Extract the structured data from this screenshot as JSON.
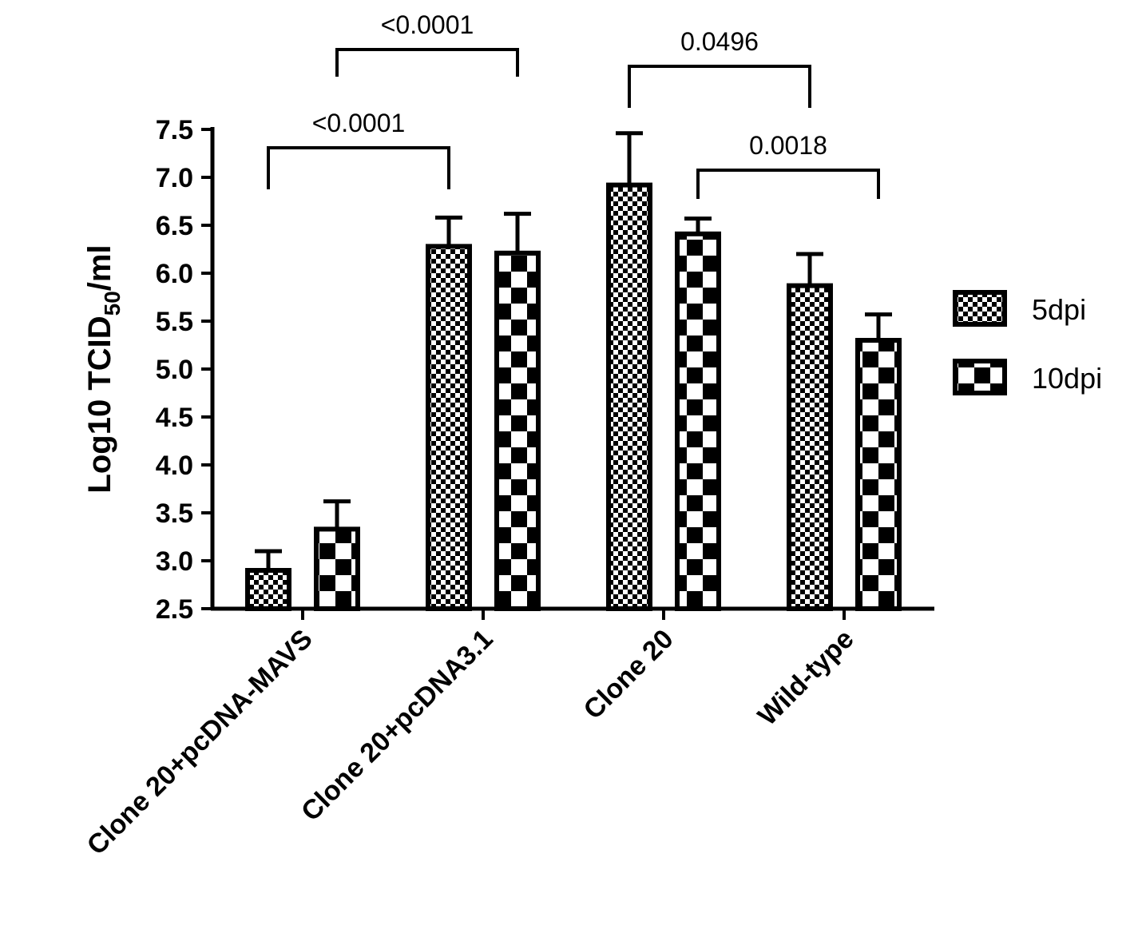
{
  "chart_data": {
    "type": "bar",
    "ylabel_parts": [
      "Log10 TCID",
      "50",
      "/ml"
    ],
    "ylim": [
      2.5,
      7.5
    ],
    "yticks": [
      "2.5",
      "3.0",
      "3.5",
      "4.0",
      "4.5",
      "5.0",
      "5.5",
      "6.0",
      "6.5",
      "7.0",
      "7.5"
    ],
    "categories": [
      "Clone 20+pcDNA-MAVS",
      "Clone 20+pcDNA3.1",
      "Clone 20",
      "Wild-type"
    ],
    "series": [
      {
        "name": "5dpi",
        "values": [
          2.9,
          6.28,
          6.92,
          5.87
        ],
        "errors": [
          0.2,
          0.3,
          0.54,
          0.33
        ]
      },
      {
        "name": "10dpi",
        "values": [
          3.33,
          6.21,
          6.41,
          5.3
        ],
        "errors": [
          0.29,
          0.41,
          0.16,
          0.27
        ]
      }
    ],
    "significance": [
      {
        "label": "<0.0001",
        "from": [
          0,
          0
        ],
        "to": [
          1,
          0
        ]
      },
      {
        "label": "<0.0001",
        "from": [
          0,
          1
        ],
        "to": [
          1,
          1
        ]
      },
      {
        "label": "0.0496",
        "from": [
          2,
          0
        ],
        "to": [
          3,
          0
        ]
      },
      {
        "label": "0.0018",
        "from": [
          2,
          1
        ],
        "to": [
          3,
          1
        ]
      }
    ],
    "legend_position": "right",
    "grid": false
  },
  "colors": {
    "ink": "#000000",
    "background": "#ffffff"
  }
}
